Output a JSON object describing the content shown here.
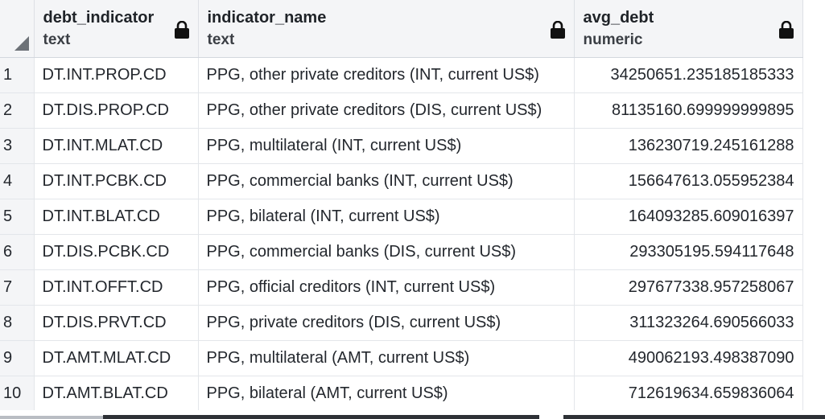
{
  "columns": [
    {
      "name": "debt_indicator",
      "type": "text"
    },
    {
      "name": "indicator_name",
      "type": "text"
    },
    {
      "name": "avg_debt",
      "type": "numeric"
    }
  ],
  "rows": [
    {
      "num": "1",
      "debt_indicator": "DT.INT.PROP.CD",
      "indicator_name": "PPG, other private creditors (INT, current US$)",
      "avg_debt": "34250651.235185185333"
    },
    {
      "num": "2",
      "debt_indicator": "DT.DIS.PROP.CD",
      "indicator_name": "PPG, other private creditors (DIS, current US$)",
      "avg_debt": "81135160.699999999895"
    },
    {
      "num": "3",
      "debt_indicator": "DT.INT.MLAT.CD",
      "indicator_name": "PPG, multilateral (INT, current US$)",
      "avg_debt": "136230719.245161288"
    },
    {
      "num": "4",
      "debt_indicator": "DT.INT.PCBK.CD",
      "indicator_name": "PPG, commercial banks (INT, current US$)",
      "avg_debt": "156647613.055952384"
    },
    {
      "num": "5",
      "debt_indicator": "DT.INT.BLAT.CD",
      "indicator_name": "PPG, bilateral (INT, current US$)",
      "avg_debt": "164093285.609016397"
    },
    {
      "num": "6",
      "debt_indicator": "DT.DIS.PCBK.CD",
      "indicator_name": "PPG, commercial banks (DIS, current US$)",
      "avg_debt": "293305195.594117648"
    },
    {
      "num": "7",
      "debt_indicator": "DT.INT.OFFT.CD",
      "indicator_name": "PPG, official creditors (INT, current US$)",
      "avg_debt": "297677338.957258067"
    },
    {
      "num": "8",
      "debt_indicator": "DT.DIS.PRVT.CD",
      "indicator_name": "PPG, private creditors (DIS, current US$)",
      "avg_debt": "311323264.690566033"
    },
    {
      "num": "9",
      "debt_indicator": "DT.AMT.MLAT.CD",
      "indicator_name": "PPG, multilateral (AMT, current US$)",
      "avg_debt": "490062193.498387090"
    },
    {
      "num": "10",
      "debt_indicator": "DT.AMT.BLAT.CD",
      "indicator_name": "PPG, bilateral (AMT, current US$)",
      "avg_debt": "712619634.659836064"
    }
  ],
  "icons": {
    "header_lock": "lock-icon",
    "select_all": "select-all-triangle-icon"
  }
}
